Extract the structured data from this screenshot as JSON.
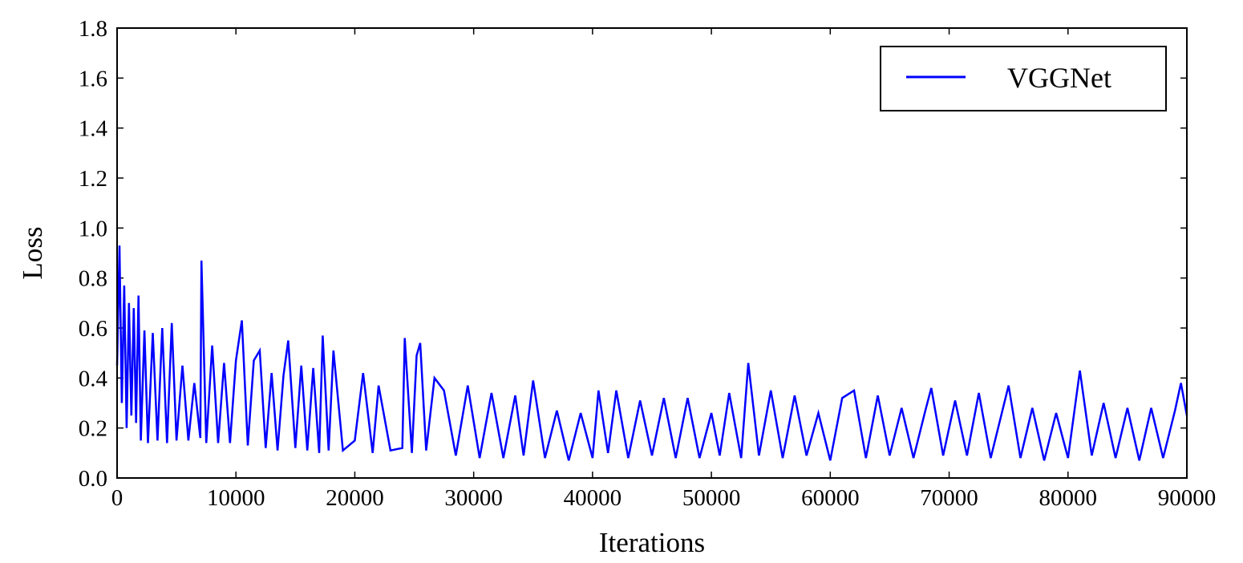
{
  "chart_data": {
    "type": "line",
    "title": "",
    "xlabel": "Iterations",
    "ylabel": "Loss",
    "xlim": [
      0,
      90000
    ],
    "ylim": [
      0.0,
      1.8
    ],
    "x_ticks": [
      0,
      10000,
      20000,
      30000,
      40000,
      50000,
      60000,
      70000,
      80000,
      90000
    ],
    "x_tick_labels": [
      "0",
      "10000",
      "20000",
      "30000",
      "40000",
      "50000",
      "60000",
      "70000",
      "80000",
      "90000"
    ],
    "y_ticks": [
      0.0,
      0.2,
      0.4,
      0.6,
      0.8,
      1.0,
      1.2,
      1.4,
      1.6,
      1.8
    ],
    "y_tick_labels": [
      "0.0",
      "0.2",
      "0.4",
      "0.6",
      "0.8",
      "1.0",
      "1.2",
      "1.4",
      "1.6",
      "1.8"
    ],
    "grid": false,
    "legend_position": "top-right",
    "series": [
      {
        "name": "VGGNet",
        "color": "#0000ff",
        "x": [
          0,
          200,
          400,
          600,
          800,
          1000,
          1200,
          1400,
          1600,
          1800,
          2000,
          2300,
          2600,
          3000,
          3400,
          3800,
          4200,
          4600,
          5000,
          5500,
          6000,
          6500,
          7000,
          7100,
          7500,
          8000,
          8500,
          9000,
          9500,
          10000,
          10500,
          11000,
          11500,
          12000,
          12500,
          13000,
          13500,
          14000,
          14400,
          15000,
          15500,
          16000,
          16500,
          17000,
          17300,
          17800,
          18200,
          19000,
          20000,
          20700,
          21500,
          22000,
          23000,
          24000,
          24200,
          24800,
          25200,
          25500,
          26000,
          26700,
          27500,
          28500,
          29500,
          30500,
          31500,
          32500,
          33500,
          34200,
          35000,
          36000,
          37000,
          38000,
          39000,
          40000,
          40500,
          41300,
          42000,
          43000,
          44000,
          45000,
          46000,
          47000,
          48000,
          49000,
          50000,
          50700,
          51500,
          52500,
          53100,
          54000,
          55000,
          56000,
          57000,
          58000,
          59000,
          60000,
          61000,
          62000,
          63000,
          64000,
          65000,
          66000,
          67000,
          68000,
          68500,
          69500,
          70500,
          71500,
          72500,
          73500,
          75000,
          76000,
          77000,
          78000,
          79000,
          80000,
          81000,
          82000,
          83000,
          84000,
          85000,
          86000,
          87000,
          88000,
          89000,
          89500,
          90000
        ],
        "values": [
          0.45,
          0.93,
          0.3,
          0.77,
          0.2,
          0.7,
          0.25,
          0.68,
          0.22,
          0.73,
          0.15,
          0.59,
          0.14,
          0.58,
          0.15,
          0.6,
          0.14,
          0.62,
          0.15,
          0.45,
          0.15,
          0.38,
          0.16,
          0.87,
          0.14,
          0.53,
          0.14,
          0.46,
          0.14,
          0.47,
          0.63,
          0.13,
          0.47,
          0.51,
          0.12,
          0.42,
          0.11,
          0.41,
          0.55,
          0.12,
          0.45,
          0.11,
          0.44,
          0.1,
          0.57,
          0.11,
          0.51,
          0.11,
          0.15,
          0.42,
          0.1,
          0.37,
          0.11,
          0.12,
          0.56,
          0.1,
          0.49,
          0.54,
          0.11,
          0.4,
          0.35,
          0.09,
          0.37,
          0.08,
          0.34,
          0.08,
          0.33,
          0.09,
          0.39,
          0.08,
          0.27,
          0.07,
          0.26,
          0.08,
          0.35,
          0.1,
          0.35,
          0.08,
          0.31,
          0.09,
          0.32,
          0.08,
          0.32,
          0.08,
          0.26,
          0.09,
          0.34,
          0.08,
          0.46,
          0.09,
          0.35,
          0.08,
          0.33,
          0.09,
          0.26,
          0.07,
          0.32,
          0.35,
          0.08,
          0.33,
          0.09,
          0.28,
          0.08,
          0.27,
          0.36,
          0.09,
          0.31,
          0.09,
          0.34,
          0.08,
          0.37,
          0.08,
          0.28,
          0.07,
          0.26,
          0.08,
          0.43,
          0.09,
          0.3,
          0.08,
          0.28,
          0.07,
          0.28,
          0.08,
          0.27,
          0.38,
          0.25
        ]
      }
    ]
  }
}
